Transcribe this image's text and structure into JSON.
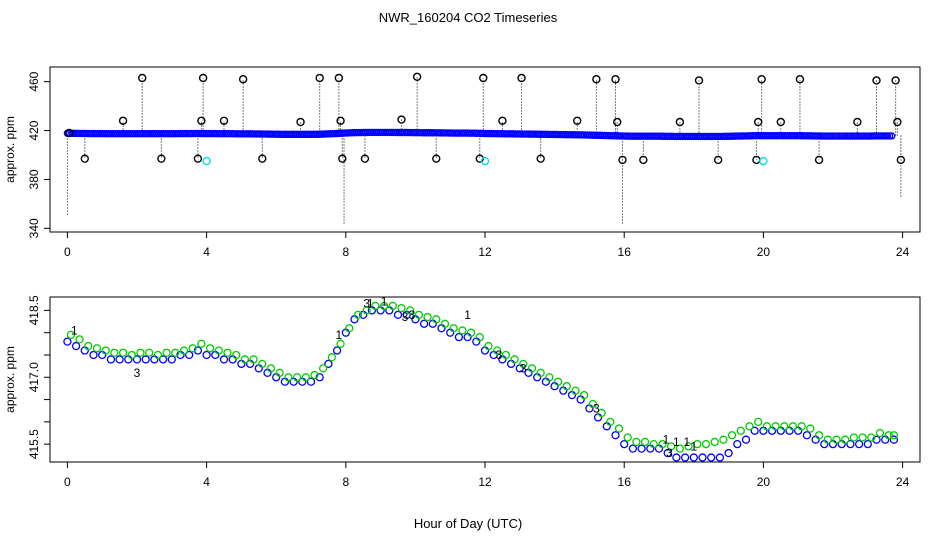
{
  "colors": {
    "black": "#000000",
    "blue": "#0000ff",
    "green": "#00cc00",
    "red": "#ff0000",
    "cyan": "#00e0e0"
  },
  "title": "NWR_160204  CO2 Timeseries",
  "xlabel": "Hour of Day (UTC)",
  "chart_data": [
    {
      "type": "scatter",
      "panel": "top",
      "title": "NWR_160204  CO2 Timeseries",
      "xlabel": "",
      "ylabel": "approx. ppm",
      "xlim": [
        -0.5,
        24.5
      ],
      "ylim": [
        337,
        472
      ],
      "xticks": [
        0,
        4,
        8,
        12,
        16,
        20,
        24
      ],
      "yticks": [
        340,
        380,
        420,
        460
      ],
      "series": [
        {
          "marker": "open circle",
          "color": "blue",
          "x": [
            0.0,
            0.25,
            0.5,
            0.75,
            1.0,
            1.25,
            1.5,
            1.75,
            2.0,
            2.25,
            2.5,
            2.75,
            3.0,
            3.25,
            3.5,
            3.75,
            4.0,
            4.25,
            4.5,
            4.75,
            5.0,
            5.25,
            5.5,
            5.75,
            6.0,
            6.25,
            6.5,
            6.75,
            7.0,
            7.25,
            7.5,
            7.75,
            8.0,
            8.25,
            8.5,
            8.75,
            9.0,
            9.25,
            9.5,
            9.75,
            10.0,
            10.25,
            10.5,
            10.75,
            11.0,
            11.25,
            11.5,
            11.75,
            12.0,
            12.25,
            12.5,
            12.75,
            13.0,
            13.25,
            13.5,
            13.75,
            14.0,
            14.25,
            14.5,
            14.75,
            15.0,
            15.25,
            15.5,
            15.75,
            16.0,
            16.25,
            16.5,
            16.75,
            17.0,
            17.25,
            17.5,
            17.75,
            18.0,
            18.25,
            18.5,
            18.75,
            19.0,
            19.25,
            19.5,
            19.75,
            20.0,
            20.25,
            20.5,
            20.75,
            21.0,
            21.25,
            21.5,
            21.75,
            22.0,
            22.25,
            22.5,
            22.75,
            23.0,
            23.25,
            23.5,
            23.75
          ],
          "y": [
            417.8,
            417.7,
            417.6,
            417.5,
            417.5,
            417.4,
            417.4,
            417.4,
            417.4,
            417.4,
            417.4,
            417.4,
            417.4,
            417.5,
            417.5,
            417.6,
            417.5,
            417.5,
            417.4,
            417.4,
            417.3,
            417.3,
            417.2,
            417.1,
            417.0,
            416.9,
            416.9,
            416.9,
            416.9,
            417.0,
            417.3,
            417.6,
            418.0,
            418.3,
            418.4,
            418.5,
            418.5,
            418.5,
            418.4,
            418.4,
            418.3,
            418.2,
            418.2,
            418.1,
            418.0,
            417.9,
            417.9,
            417.8,
            417.6,
            417.5,
            417.4,
            417.3,
            417.2,
            417.1,
            417.0,
            416.9,
            416.8,
            416.7,
            416.6,
            416.5,
            416.3,
            416.1,
            415.9,
            415.7,
            415.5,
            415.4,
            415.4,
            415.4,
            415.4,
            415.3,
            415.2,
            415.2,
            415.2,
            415.2,
            415.2,
            415.2,
            415.3,
            415.5,
            415.6,
            415.8,
            415.8,
            415.8,
            415.8,
            415.8,
            415.8,
            415.7,
            415.6,
            415.5,
            415.5,
            415.5,
            415.5,
            415.5,
            415.5,
            415.6,
            415.6,
            415.6
          ]
        },
        {
          "marker": "open circle",
          "color": "black",
          "x": [
            0.05,
            0.5,
            1.6,
            2.15,
            2.7,
            3.75,
            3.85,
            3.9,
            4.5,
            5.05,
            5.6,
            6.7,
            7.25,
            7.8,
            7.85,
            7.9,
            8.55,
            9.6,
            10.05,
            10.6,
            11.85,
            11.95,
            12.5,
            13.05,
            13.6,
            14.65,
            15.2,
            15.75,
            15.8,
            15.95,
            16.55,
            17.6,
            18.15,
            18.7,
            19.8,
            19.85,
            19.95,
            20.5,
            21.05,
            21.6,
            22.7,
            23.25,
            23.8,
            23.85,
            23.95
          ],
          "y": [
            418,
            397,
            428,
            463,
            397,
            397,
            428,
            463,
            428,
            462,
            397,
            427,
            463,
            463,
            428,
            397,
            397,
            429,
            464,
            397,
            397,
            463,
            428,
            463,
            397,
            428,
            462,
            462,
            427,
            396,
            396,
            427,
            461,
            396,
            396,
            427,
            462,
            427,
            462,
            396,
            427,
            461,
            461,
            427,
            396
          ]
        },
        {
          "marker": "open circle",
          "color": "cyan",
          "x": [
            4.0,
            12.0,
            20.0
          ],
          "y": [
            395,
            395,
            395
          ]
        }
      ]
    },
    {
      "type": "scatter",
      "panel": "bottom",
      "title": "",
      "xlabel": "Hour of Day (UTC)",
      "ylabel": "approx. ppm",
      "xlim": [
        -0.5,
        24.5
      ],
      "ylim": [
        415.1,
        418.8
      ],
      "xticks": [
        0,
        4,
        8,
        12,
        16,
        20,
        24
      ],
      "yticks": [
        415.5,
        416.0,
        416.5,
        417.0,
        417.5,
        418.0,
        418.5
      ],
      "yticklabels": [
        "415.5",
        "",
        "",
        "417.0",
        "",
        "",
        "418.5"
      ],
      "series": [
        {
          "marker": "open circle",
          "color": "blue",
          "x": [
            0.0,
            0.25,
            0.5,
            0.75,
            1.0,
            1.25,
            1.5,
            1.75,
            2.0,
            2.25,
            2.5,
            2.75,
            3.0,
            3.25,
            3.5,
            3.75,
            4.0,
            4.25,
            4.5,
            4.75,
            5.0,
            5.25,
            5.5,
            5.75,
            6.0,
            6.25,
            6.5,
            6.75,
            7.0,
            7.25,
            7.5,
            7.75,
            8.0,
            8.25,
            8.5,
            8.75,
            9.0,
            9.25,
            9.5,
            9.75,
            10.0,
            10.25,
            10.5,
            10.75,
            11.0,
            11.25,
            11.5,
            11.75,
            12.0,
            12.25,
            12.5,
            12.75,
            13.0,
            13.25,
            13.5,
            13.75,
            14.0,
            14.25,
            14.5,
            14.75,
            15.0,
            15.25,
            15.5,
            15.75,
            16.0,
            16.25,
            16.5,
            16.75,
            17.0,
            17.25,
            17.5,
            17.75,
            18.0,
            18.25,
            18.5,
            18.75,
            19.0,
            19.25,
            19.5,
            19.75,
            20.0,
            20.25,
            20.5,
            20.75,
            21.0,
            21.25,
            21.5,
            21.75,
            22.0,
            22.25,
            22.5,
            22.75,
            23.0,
            23.25,
            23.5,
            23.75
          ],
          "y": [
            417.8,
            417.7,
            417.6,
            417.5,
            417.5,
            417.4,
            417.4,
            417.4,
            417.4,
            417.4,
            417.4,
            417.4,
            417.4,
            417.5,
            417.5,
            417.6,
            417.5,
            417.5,
            417.4,
            417.4,
            417.3,
            417.3,
            417.2,
            417.1,
            417.0,
            416.9,
            416.9,
            416.9,
            416.9,
            417.0,
            417.3,
            417.6,
            418.0,
            418.3,
            418.4,
            418.5,
            418.5,
            418.5,
            418.4,
            418.4,
            418.3,
            418.2,
            418.2,
            418.1,
            418.0,
            417.9,
            417.9,
            417.8,
            417.6,
            417.5,
            417.4,
            417.3,
            417.2,
            417.1,
            417.0,
            416.9,
            416.8,
            416.7,
            416.6,
            416.5,
            416.3,
            416.1,
            415.9,
            415.7,
            415.5,
            415.4,
            415.4,
            415.4,
            415.4,
            415.3,
            415.2,
            415.2,
            415.2,
            415.2,
            415.2,
            415.2,
            415.3,
            415.5,
            415.6,
            415.8,
            415.8,
            415.8,
            415.8,
            415.8,
            415.8,
            415.7,
            415.6,
            415.5,
            415.5,
            415.5,
            415.5,
            415.5,
            415.5,
            415.6,
            415.6,
            415.6
          ]
        },
        {
          "marker": "open circle",
          "color": "green",
          "x": [
            0.1,
            0.35,
            0.6,
            0.85,
            1.1,
            1.35,
            1.6,
            1.85,
            2.1,
            2.35,
            2.6,
            2.85,
            3.1,
            3.35,
            3.6,
            3.85,
            4.1,
            4.35,
            4.6,
            4.85,
            5.1,
            5.35,
            5.6,
            5.85,
            6.1,
            6.35,
            6.6,
            6.85,
            7.1,
            7.35,
            7.6,
            7.85,
            8.1,
            8.35,
            8.6,
            8.85,
            9.1,
            9.35,
            9.6,
            9.85,
            10.1,
            10.35,
            10.6,
            10.85,
            11.1,
            11.35,
            11.6,
            11.85,
            12.1,
            12.35,
            12.6,
            12.85,
            13.1,
            13.35,
            13.6,
            13.85,
            14.1,
            14.35,
            14.6,
            14.85,
            15.1,
            15.35,
            15.6,
            15.85,
            16.1,
            16.35,
            16.6,
            16.85,
            17.1,
            17.35,
            17.6,
            17.85,
            18.1,
            18.35,
            18.6,
            18.85,
            19.1,
            19.35,
            19.6,
            19.85,
            20.1,
            20.35,
            20.6,
            20.85,
            21.1,
            21.35,
            21.6,
            21.85,
            22.1,
            22.35,
            22.6,
            22.85,
            23.1,
            23.35,
            23.6,
            23.75
          ],
          "y": [
            417.95,
            417.85,
            417.7,
            417.65,
            417.6,
            417.55,
            417.55,
            417.5,
            417.55,
            417.55,
            417.5,
            417.55,
            417.55,
            417.6,
            417.65,
            417.75,
            417.65,
            417.6,
            417.55,
            417.5,
            417.4,
            417.4,
            417.3,
            417.2,
            417.1,
            417.0,
            417.0,
            417.0,
            417.05,
            417.2,
            417.45,
            417.75,
            418.1,
            418.4,
            418.5,
            418.6,
            418.6,
            418.6,
            418.55,
            418.5,
            418.4,
            418.35,
            418.3,
            418.2,
            418.1,
            418.05,
            418.0,
            417.9,
            417.7,
            417.6,
            417.5,
            417.4,
            417.3,
            417.2,
            417.1,
            417.0,
            416.9,
            416.8,
            416.7,
            416.6,
            416.4,
            416.2,
            416.0,
            415.85,
            415.65,
            415.55,
            415.55,
            415.5,
            415.5,
            415.45,
            415.4,
            415.45,
            415.5,
            415.5,
            415.55,
            415.6,
            415.7,
            415.8,
            415.9,
            416.0,
            415.9,
            415.9,
            415.9,
            415.9,
            415.9,
            415.85,
            415.7,
            415.6,
            415.6,
            415.6,
            415.65,
            415.65,
            415.65,
            415.75,
            415.7,
            415.7
          ]
        },
        {
          "marker": "digit",
          "color": "red",
          "x": [
            0.2,
            7.8,
            8.7,
            9.1,
            11.5,
            17.2,
            17.5,
            17.8,
            18.0
          ],
          "y": [
            418.05,
            417.95,
            418.65,
            418.7,
            418.4,
            415.6,
            415.55,
            415.55,
            415.45
          ],
          "labels": [
            "1",
            "1",
            "1",
            "1",
            "1",
            "1",
            "1",
            "1",
            "1"
          ]
        },
        {
          "marker": "digit",
          "color": "blue",
          "x": [
            2.0,
            8.6,
            9.7,
            9.9,
            12.4,
            13.1,
            15.2,
            17.3
          ],
          "y": [
            417.1,
            418.65,
            418.35,
            418.4,
            417.5,
            417.2,
            416.3,
            415.3
          ],
          "labels": [
            "3",
            "3",
            "3",
            "3",
            "3",
            "3",
            "3",
            "3"
          ]
        }
      ]
    }
  ]
}
